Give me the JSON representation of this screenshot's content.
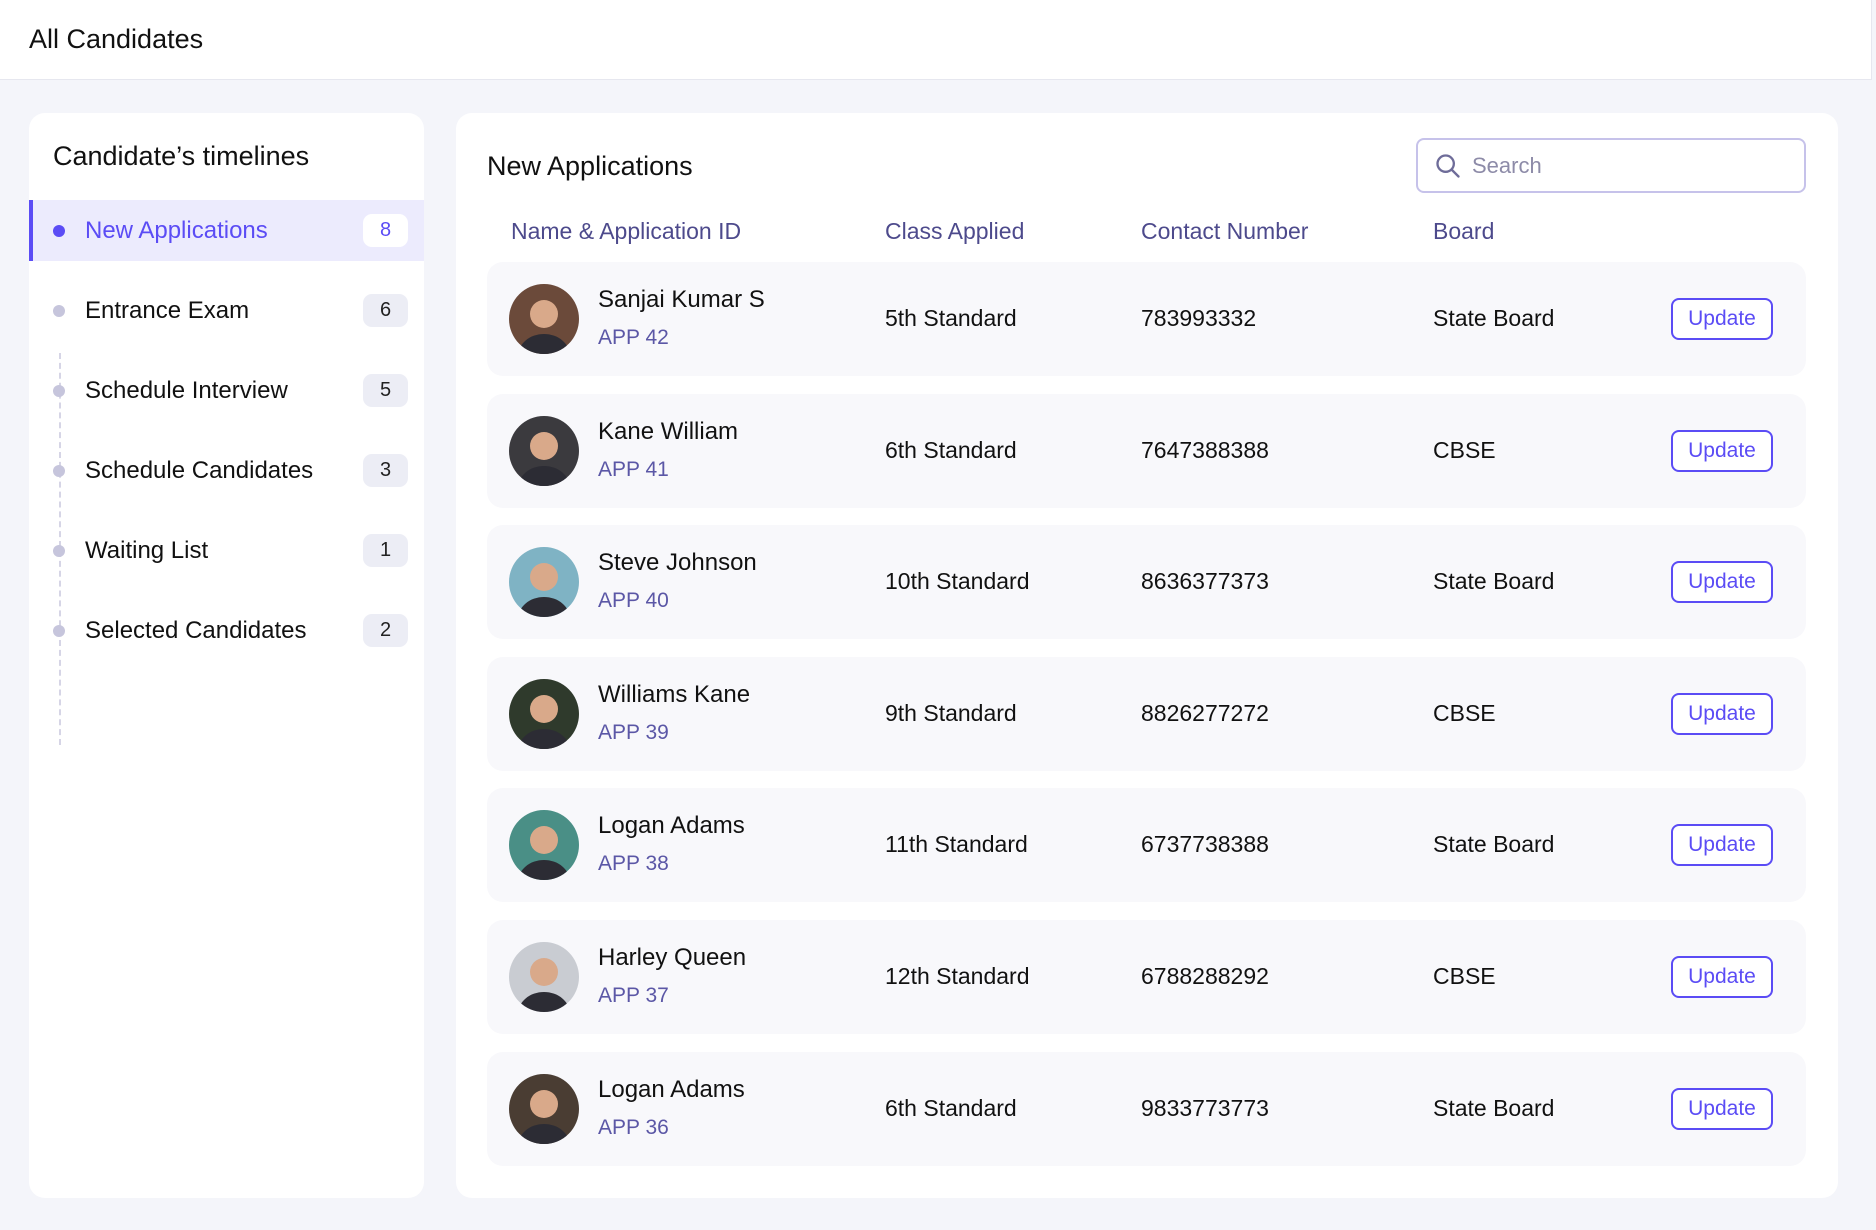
{
  "header": {
    "title": "All Candidates"
  },
  "sidebar": {
    "title": "Candidate’s timelines",
    "items": [
      {
        "label": "New Applications",
        "count": "8",
        "active": true
      },
      {
        "label": "Entrance Exam",
        "count": "6"
      },
      {
        "label": "Schedule Interview",
        "count": "5"
      },
      {
        "label": "Schedule Candidates",
        "count": "3"
      },
      {
        "label": "Waiting List",
        "count": "1"
      },
      {
        "label": "Selected Candidates",
        "count": "2"
      }
    ]
  },
  "main": {
    "title": "New Applications",
    "search_placeholder": "Search",
    "columns": [
      "Name & Application ID",
      "Class Applied",
      "Contact Number",
      "Board"
    ],
    "update_label": "Update",
    "rows": [
      {
        "name": "Sanjai Kumar S",
        "id": "APP 42",
        "class": "5th Standard",
        "contact": "783993332",
        "board": "State Board",
        "avatar_color": "#6b4a3a"
      },
      {
        "name": "Kane William",
        "id": "APP 41",
        "class": "6th Standard",
        "contact": "7647388388",
        "board": "CBSE",
        "avatar_color": "#3b3a3e"
      },
      {
        "name": "Steve Johnson",
        "id": "APP 40",
        "class": "10th Standard",
        "contact": "8636377373",
        "board": "State Board",
        "avatar_color": "#7fb3c4"
      },
      {
        "name": "Williams Kane",
        "id": "APP 39",
        "class": "9th Standard",
        "contact": "8826277272",
        "board": "CBSE",
        "avatar_color": "#2f3a2c"
      },
      {
        "name": "Logan Adams",
        "id": "APP 38",
        "class": "11th Standard",
        "contact": "6737738388",
        "board": "State Board",
        "avatar_color": "#4a8f86"
      },
      {
        "name": "Harley Queen",
        "id": "APP 37",
        "class": "12th Standard",
        "contact": "6788288292",
        "board": "CBSE",
        "avatar_color": "#c9ccd2"
      },
      {
        "name": "Logan Adams",
        "id": "APP 36",
        "class": "6th Standard",
        "contact": "9833773773",
        "board": "State Board",
        "avatar_color": "#4a3d33"
      }
    ]
  },
  "colors": {
    "accent": "#5b4cf5",
    "header_text": "#4d4a8c"
  }
}
